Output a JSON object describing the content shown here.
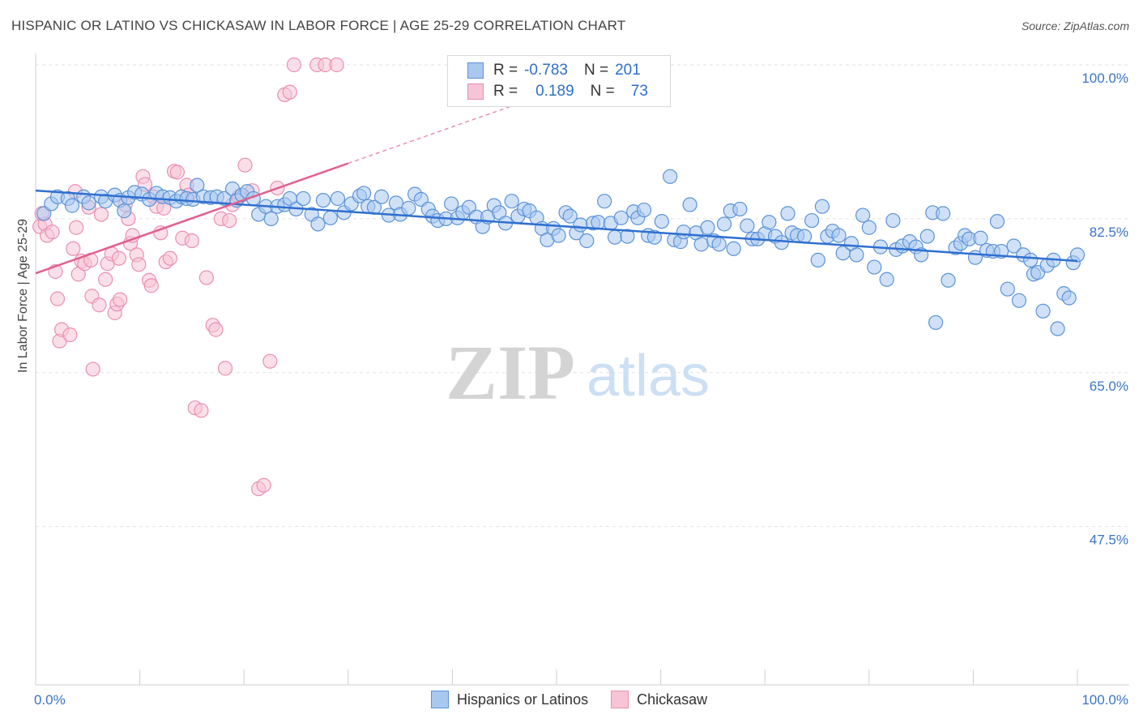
{
  "title": "HISPANIC OR LATINO VS CHICKASAW IN LABOR FORCE | AGE 25-29 CORRELATION CHART",
  "source": "Source: ZipAtlas.com",
  "watermark": {
    "zip": "ZIP",
    "atlas": "atlas"
  },
  "legend": {
    "rows": [
      {
        "r_label": "R =",
        "r_value": "-0.783",
        "n_label": "N =",
        "n_value": "201"
      },
      {
        "r_label": "R =",
        "r_value": "0.189",
        "n_label": "N =",
        "n_value": "73"
      }
    ]
  },
  "bottom_legend": [
    "Hispanics or Latinos",
    "Chickasaw"
  ],
  "colors": {
    "blue_fill": "#a9c8f0",
    "blue_stroke": "#5b93d8",
    "blue_line": "#2f6fd0",
    "pink_fill": "#f6c4d6",
    "pink_stroke": "#ea8fb1",
    "pink_line": "#e0608e",
    "axis_text": "#3a74c8",
    "grid": "#e2e2e2"
  },
  "chart_data": {
    "type": "scatter",
    "title": "HISPANIC OR LATINO VS CHICKASAW IN LABOR FORCE | AGE 25-29 CORRELATION CHART",
    "xlabel": "",
    "ylabel": "In Labor Force | Age 25-29",
    "xlim": [
      0,
      100
    ],
    "ylim": [
      29.5,
      100
    ],
    "x_tick_labels": [
      "0.0%",
      "100.0%"
    ],
    "y_ticks": [
      47.5,
      65.0,
      82.5,
      100.0
    ],
    "y_tick_labels": [
      "47.5%",
      "65.0%",
      "82.5%",
      "100.0%"
    ],
    "series": [
      {
        "name": "Hispanics or Latinos",
        "r": -0.783,
        "n": 201,
        "trend": {
          "x0": 0,
          "y0": 85.7,
          "x1": 100,
          "y1": 77.7
        },
        "points": [
          [
            0.8,
            83.1
          ],
          [
            1.5,
            84.2
          ],
          [
            2.1,
            85.0
          ],
          [
            3.1,
            84.8
          ],
          [
            3.5,
            84.0
          ],
          [
            4.6,
            85.0
          ],
          [
            5.1,
            84.3
          ],
          [
            6.3,
            85.0
          ],
          [
            6.7,
            84.5
          ],
          [
            7.6,
            85.2
          ],
          [
            8.1,
            84.6
          ],
          [
            8.5,
            83.4
          ],
          [
            8.9,
            84.9
          ],
          [
            9.5,
            85.5
          ],
          [
            10.2,
            85.3
          ],
          [
            10.9,
            84.7
          ],
          [
            11.6,
            85.4
          ],
          [
            12.2,
            85.0
          ],
          [
            12.9,
            84.9
          ],
          [
            13.5,
            84.5
          ],
          [
            14.0,
            85.0
          ],
          [
            14.5,
            84.8
          ],
          [
            15.1,
            84.7
          ],
          [
            15.5,
            86.3
          ],
          [
            16.1,
            85.0
          ],
          [
            16.8,
            84.9
          ],
          [
            17.4,
            85.0
          ],
          [
            18.1,
            84.8
          ],
          [
            18.9,
            85.9
          ],
          [
            19.3,
            84.6
          ],
          [
            19.8,
            85.2
          ],
          [
            20.3,
            85.6
          ],
          [
            20.9,
            84.8
          ],
          [
            21.4,
            83.0
          ],
          [
            22.1,
            83.9
          ],
          [
            22.6,
            82.5
          ],
          [
            23.2,
            83.9
          ],
          [
            23.9,
            84.1
          ],
          [
            24.4,
            84.8
          ],
          [
            25.0,
            83.6
          ],
          [
            25.7,
            84.8
          ],
          [
            26.5,
            83.0
          ],
          [
            27.1,
            81.9
          ],
          [
            27.6,
            84.6
          ],
          [
            28.3,
            82.6
          ],
          [
            29.0,
            84.8
          ],
          [
            29.6,
            83.2
          ],
          [
            30.3,
            84.2
          ],
          [
            31.1,
            85.1
          ],
          [
            31.5,
            85.4
          ],
          [
            31.9,
            83.9
          ],
          [
            32.5,
            83.8
          ],
          [
            33.2,
            85.0
          ],
          [
            33.9,
            82.9
          ],
          [
            34.6,
            84.3
          ],
          [
            35.0,
            83.0
          ],
          [
            35.8,
            83.7
          ],
          [
            36.4,
            85.3
          ],
          [
            37.0,
            84.7
          ],
          [
            37.7,
            83.6
          ],
          [
            38.1,
            82.8
          ],
          [
            38.6,
            82.3
          ],
          [
            39.4,
            82.5
          ],
          [
            39.9,
            84.2
          ],
          [
            40.5,
            82.6
          ],
          [
            41.0,
            83.2
          ],
          [
            41.6,
            83.8
          ],
          [
            42.3,
            82.7
          ],
          [
            42.9,
            81.6
          ],
          [
            43.4,
            82.7
          ],
          [
            44.0,
            84.0
          ],
          [
            44.5,
            83.2
          ],
          [
            45.1,
            82.0
          ],
          [
            45.7,
            84.5
          ],
          [
            46.3,
            82.8
          ],
          [
            46.9,
            83.6
          ],
          [
            47.4,
            83.4
          ],
          [
            48.1,
            82.6
          ],
          [
            48.6,
            81.4
          ],
          [
            49.1,
            80.1
          ],
          [
            49.7,
            81.4
          ],
          [
            50.2,
            80.6
          ],
          [
            50.9,
            83.2
          ],
          [
            51.3,
            82.8
          ],
          [
            51.9,
            80.9
          ],
          [
            52.3,
            81.8
          ],
          [
            52.9,
            80.0
          ],
          [
            53.5,
            82.0
          ],
          [
            54.0,
            82.1
          ],
          [
            54.6,
            84.5
          ],
          [
            55.2,
            82.0
          ],
          [
            55.6,
            80.4
          ],
          [
            56.2,
            82.6
          ],
          [
            56.8,
            80.5
          ],
          [
            57.4,
            83.3
          ],
          [
            57.8,
            82.6
          ],
          [
            58.4,
            83.5
          ],
          [
            58.8,
            80.6
          ],
          [
            59.4,
            80.4
          ],
          [
            60.1,
            82.2
          ],
          [
            60.9,
            87.3
          ],
          [
            61.3,
            80.1
          ],
          [
            61.9,
            79.9
          ],
          [
            62.2,
            81.0
          ],
          [
            62.8,
            84.1
          ],
          [
            63.4,
            80.9
          ],
          [
            63.9,
            79.6
          ],
          [
            64.5,
            81.5
          ],
          [
            65.1,
            80.0
          ],
          [
            65.6,
            79.6
          ],
          [
            66.1,
            81.9
          ],
          [
            66.7,
            83.4
          ],
          [
            67.0,
            79.1
          ],
          [
            67.6,
            83.6
          ],
          [
            68.3,
            81.7
          ],
          [
            68.8,
            80.2
          ],
          [
            69.3,
            80.2
          ],
          [
            70.0,
            80.8
          ],
          [
            70.4,
            82.1
          ],
          [
            71.0,
            80.5
          ],
          [
            71.6,
            79.8
          ],
          [
            72.2,
            83.1
          ],
          [
            72.6,
            80.9
          ],
          [
            73.1,
            80.6
          ],
          [
            73.8,
            80.5
          ],
          [
            74.5,
            82.3
          ],
          [
            75.1,
            77.8
          ],
          [
            75.5,
            83.9
          ],
          [
            76.0,
            80.5
          ],
          [
            76.5,
            81.1
          ],
          [
            77.1,
            80.6
          ],
          [
            77.5,
            78.6
          ],
          [
            78.3,
            79.7
          ],
          [
            78.8,
            78.4
          ],
          [
            79.4,
            82.9
          ],
          [
            80.0,
            81.5
          ],
          [
            80.5,
            77.0
          ],
          [
            81.1,
            79.3
          ],
          [
            81.7,
            75.6
          ],
          [
            82.3,
            82.3
          ],
          [
            82.6,
            79.0
          ],
          [
            83.2,
            79.4
          ],
          [
            83.9,
            79.9
          ],
          [
            84.5,
            79.3
          ],
          [
            85.0,
            78.4
          ],
          [
            85.6,
            80.5
          ],
          [
            86.1,
            83.2
          ],
          [
            86.4,
            70.7
          ],
          [
            87.1,
            83.1
          ],
          [
            87.6,
            75.5
          ],
          [
            88.3,
            79.2
          ],
          [
            88.8,
            79.7
          ],
          [
            89.2,
            80.6
          ],
          [
            89.6,
            80.2
          ],
          [
            90.2,
            78.1
          ],
          [
            90.7,
            80.3
          ],
          [
            91.3,
            78.9
          ],
          [
            91.9,
            78.8
          ],
          [
            92.3,
            82.2
          ],
          [
            92.7,
            78.8
          ],
          [
            93.3,
            74.5
          ],
          [
            93.9,
            79.4
          ],
          [
            94.4,
            73.2
          ],
          [
            94.8,
            78.4
          ],
          [
            95.5,
            77.8
          ],
          [
            95.8,
            76.2
          ],
          [
            96.2,
            76.4
          ],
          [
            96.7,
            72.0
          ],
          [
            97.1,
            77.2
          ],
          [
            97.7,
            77.8
          ],
          [
            98.1,
            70.0
          ],
          [
            98.7,
            74.0
          ],
          [
            99.2,
            73.5
          ],
          [
            99.6,
            77.5
          ],
          [
            100.0,
            78.4
          ]
        ]
      },
      {
        "name": "Chickasaw",
        "r": 0.189,
        "n": 73,
        "trend": {
          "x0": 0,
          "y0": 76.3,
          "x1": 30,
          "y1": 88.8,
          "dashed_to_x": 50,
          "dashed_to_y": 97.1
        },
        "points": [
          [
            0.4,
            81.6
          ],
          [
            0.9,
            81.9
          ],
          [
            0.6,
            83.1
          ],
          [
            1.1,
            80.6
          ],
          [
            1.6,
            81.0
          ],
          [
            1.9,
            76.5
          ],
          [
            2.1,
            73.4
          ],
          [
            2.3,
            68.6
          ],
          [
            2.5,
            69.9
          ],
          [
            3.3,
            69.3
          ],
          [
            3.6,
            79.1
          ],
          [
            3.8,
            85.6
          ],
          [
            3.9,
            81.5
          ],
          [
            4.1,
            76.2
          ],
          [
            4.4,
            77.7
          ],
          [
            4.7,
            77.4
          ],
          [
            5.1,
            83.8
          ],
          [
            5.3,
            77.8
          ],
          [
            5.4,
            73.7
          ],
          [
            5.5,
            65.4
          ],
          [
            6.1,
            72.7
          ],
          [
            6.3,
            83.0
          ],
          [
            6.7,
            75.6
          ],
          [
            6.9,
            77.4
          ],
          [
            7.3,
            78.5
          ],
          [
            7.6,
            71.8
          ],
          [
            7.8,
            72.8
          ],
          [
            8.0,
            78.0
          ],
          [
            8.1,
            73.3
          ],
          [
            8.6,
            84.1
          ],
          [
            8.9,
            82.5
          ],
          [
            9.1,
            79.7
          ],
          [
            9.3,
            80.6
          ],
          [
            9.7,
            78.4
          ],
          [
            9.9,
            77.3
          ],
          [
            10.3,
            87.3
          ],
          [
            10.5,
            86.4
          ],
          [
            10.9,
            75.5
          ],
          [
            11.1,
            74.9
          ],
          [
            11.3,
            85.0
          ],
          [
            11.6,
            83.9
          ],
          [
            12.0,
            80.9
          ],
          [
            12.3,
            83.7
          ],
          [
            12.5,
            77.6
          ],
          [
            12.9,
            78.0
          ],
          [
            13.3,
            87.9
          ],
          [
            13.6,
            87.8
          ],
          [
            14.1,
            80.3
          ],
          [
            14.5,
            86.3
          ],
          [
            14.7,
            85.2
          ],
          [
            15.0,
            80.0
          ],
          [
            15.3,
            61.0
          ],
          [
            15.9,
            60.7
          ],
          [
            16.4,
            75.8
          ],
          [
            17.0,
            70.4
          ],
          [
            17.3,
            69.9
          ],
          [
            17.8,
            82.5
          ],
          [
            18.2,
            65.5
          ],
          [
            18.6,
            82.3
          ],
          [
            18.9,
            84.1
          ],
          [
            19.5,
            85.0
          ],
          [
            20.1,
            88.6
          ],
          [
            20.8,
            85.7
          ],
          [
            21.4,
            51.8
          ],
          [
            21.9,
            52.2
          ],
          [
            22.5,
            66.3
          ],
          [
            23.2,
            86.0
          ],
          [
            23.9,
            96.6
          ],
          [
            24.4,
            96.9
          ],
          [
            24.8,
            100.0
          ],
          [
            27.0,
            100.0
          ],
          [
            27.8,
            100.0
          ],
          [
            28.9,
            100.0
          ]
        ]
      }
    ]
  }
}
